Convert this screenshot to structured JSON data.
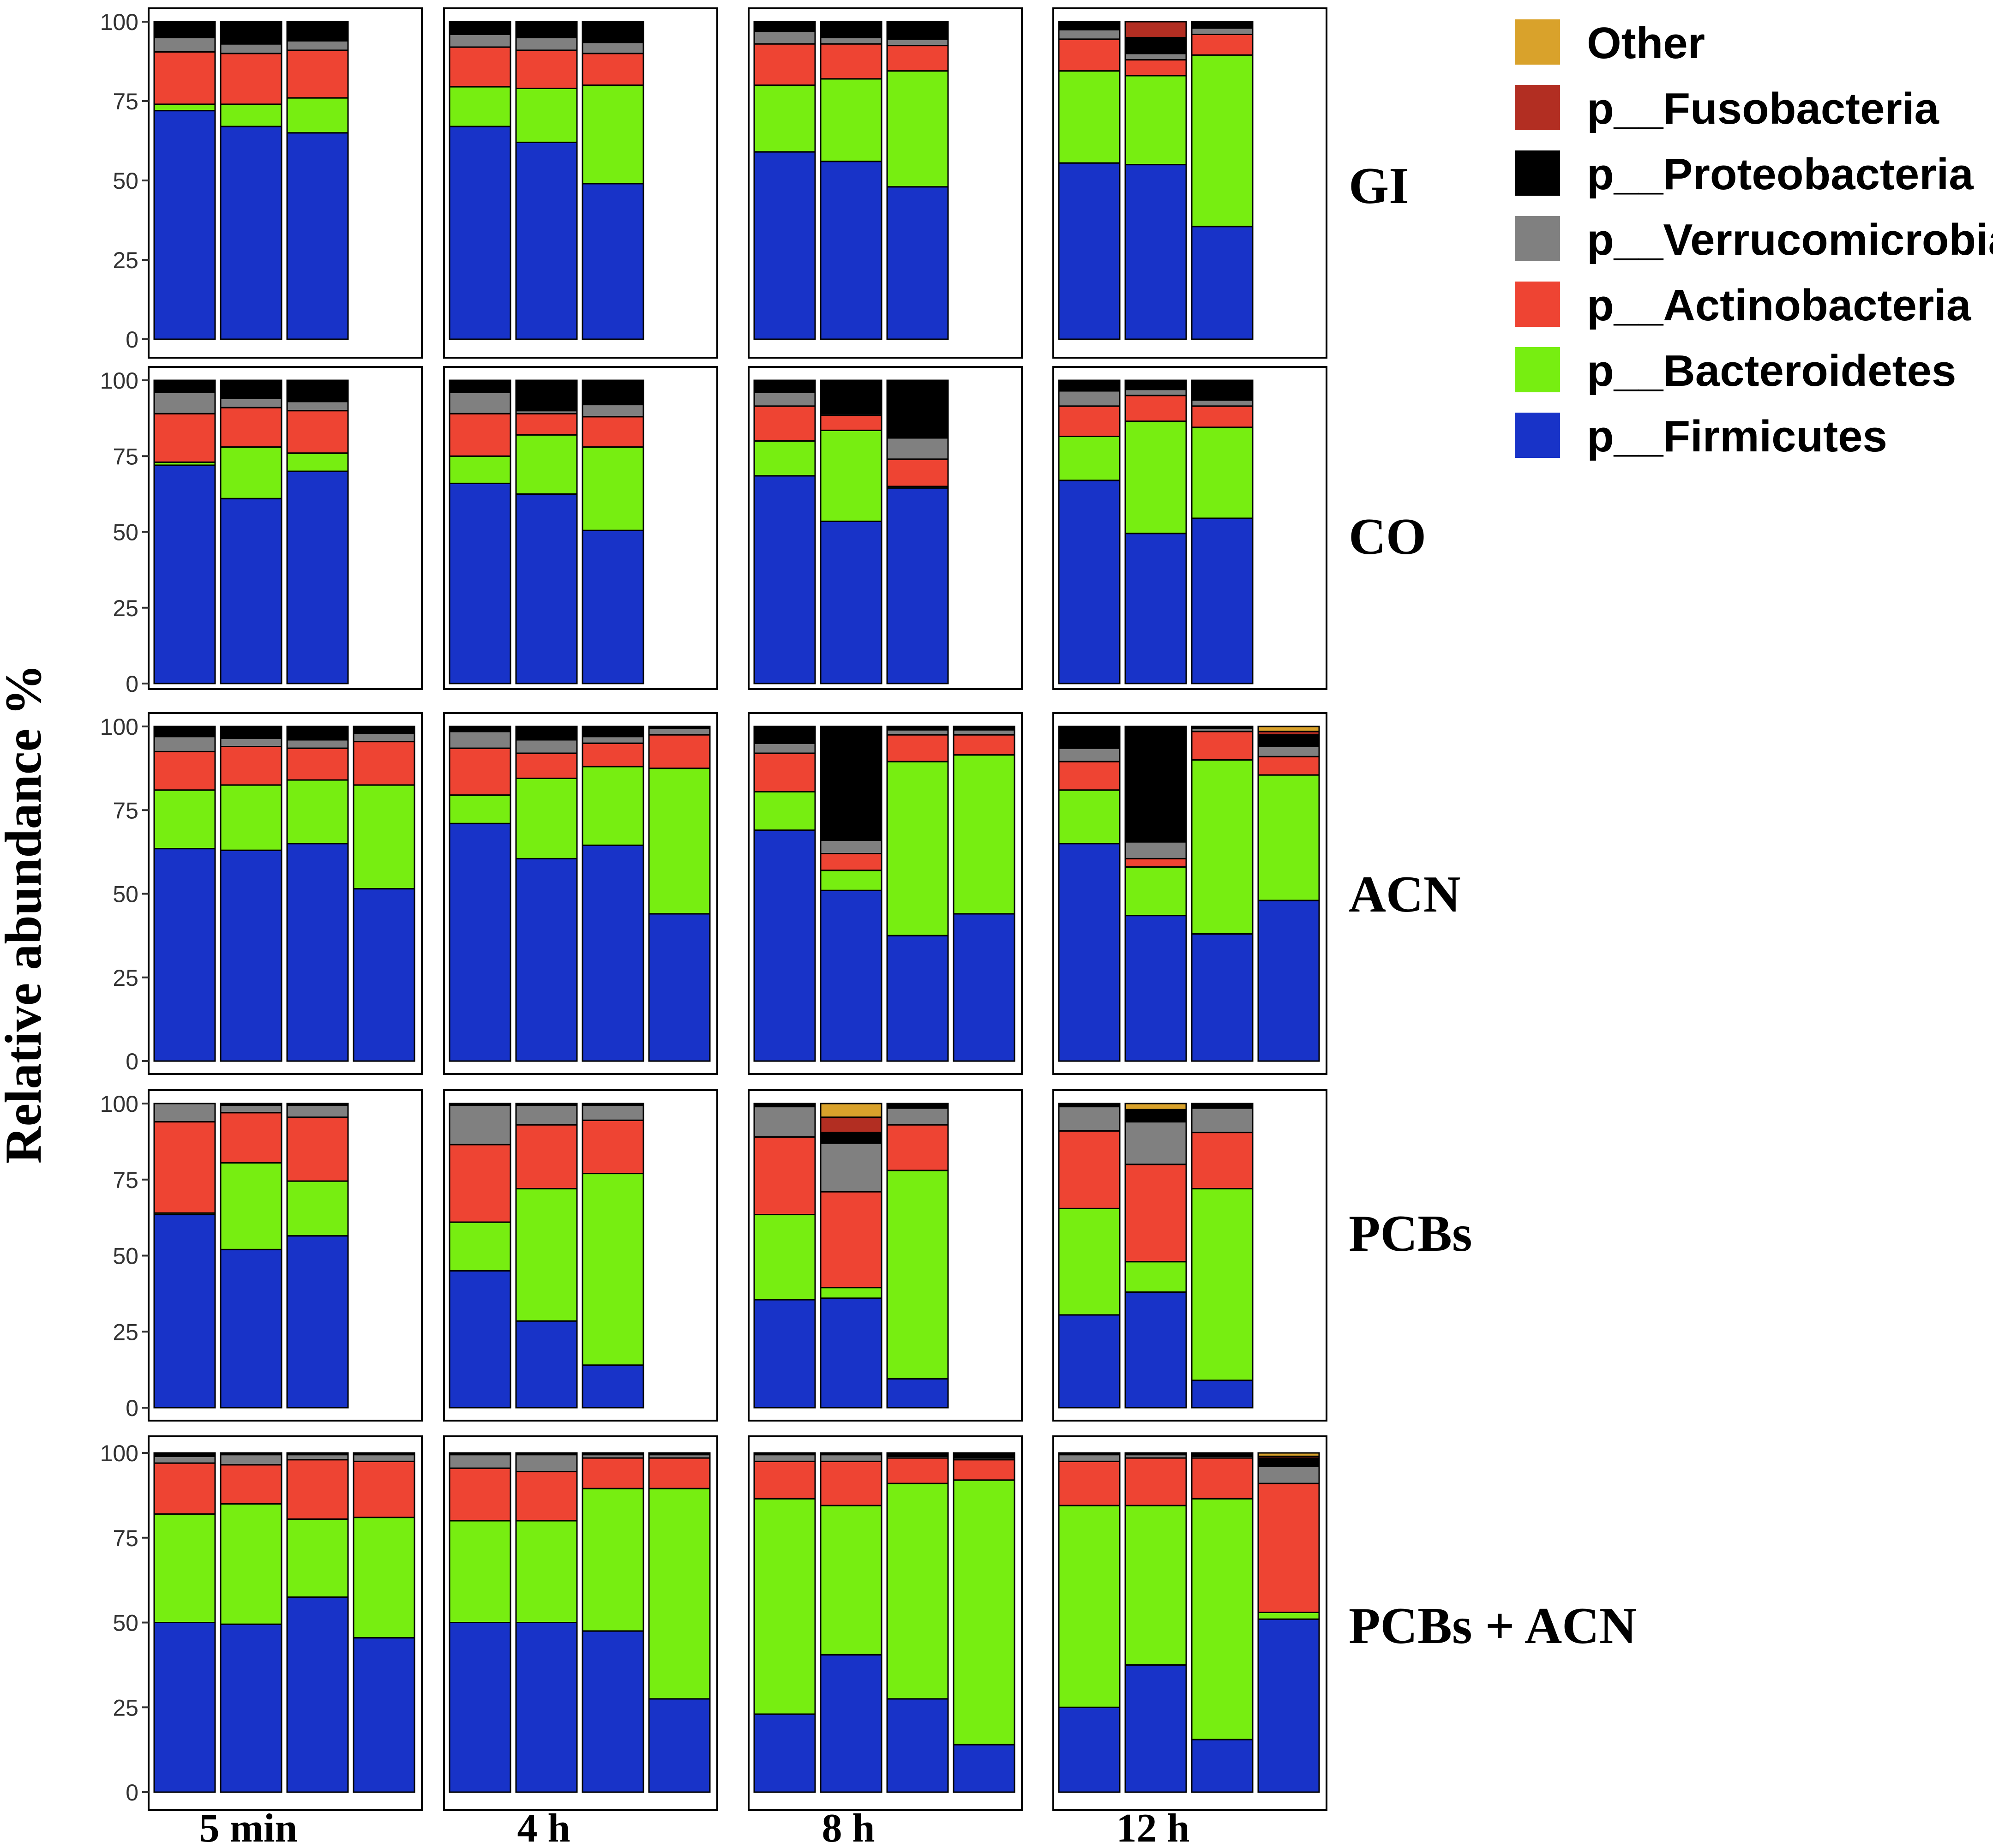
{
  "chart_data": {
    "type": "bar",
    "stacked": true,
    "ylabel": "Relative abundance %",
    "ylim": [
      0,
      100
    ],
    "yticks": [
      "0",
      "25",
      "50",
      "75",
      "100"
    ],
    "columns": [
      "5 min",
      "4 h",
      "8 h",
      "12 h"
    ],
    "rows": [
      "GI",
      "CO",
      "ACN",
      "PCBs",
      "PCBs + ACN"
    ],
    "legend": [
      {
        "name": "Other",
        "color": "#D9A22B"
      },
      {
        "name": "p__Fusobacteria",
        "color": "#B22E22"
      },
      {
        "name": "p__Proteobacteria",
        "color": "#000000"
      },
      {
        "name": "p__Verrucomicrobia",
        "color": "#808080"
      },
      {
        "name": "p__Actinobacteria",
        "color": "#EE4433"
      },
      {
        "name": "p__Bacteroidetes",
        "color": "#77EE11"
      },
      {
        "name": "p__Firmicutes",
        "color": "#1833C8"
      }
    ],
    "stack_order": [
      "p__Firmicutes",
      "p__Bacteroidetes",
      "p__Actinobacteria",
      "p__Verrucomicrobia",
      "p__Proteobacteria",
      "p__Fusobacteria",
      "p__Other"
    ],
    "panels": [
      [
        [
          [
            72,
            2,
            16.5,
            4.5,
            5,
            0,
            0
          ],
          [
            67,
            7,
            16,
            3,
            7,
            0,
            0
          ],
          [
            65,
            11,
            15,
            3,
            6,
            0,
            0
          ]
        ],
        [
          [
            67,
            12.5,
            12.5,
            4,
            4,
            0,
            0
          ],
          [
            62,
            17,
            12,
            4,
            5,
            0,
            0
          ],
          [
            49,
            31,
            10,
            3.5,
            6.5,
            0,
            0
          ]
        ],
        [
          [
            59,
            21,
            13,
            4,
            3,
            0,
            0
          ],
          [
            56,
            26,
            11,
            2,
            5,
            0,
            0
          ],
          [
            48,
            36.5,
            8,
            2,
            5.5,
            0,
            0
          ]
        ],
        [
          [
            55.5,
            29,
            10,
            3,
            2.5,
            0,
            0
          ],
          [
            55,
            28,
            5,
            2,
            5,
            5,
            0
          ],
          [
            35.5,
            54,
            6.5,
            2,
            2,
            0,
            0
          ]
        ]
      ],
      [
        [
          [
            72,
            1,
            16,
            7,
            4,
            0,
            0
          ],
          [
            61,
            17,
            13,
            3,
            6,
            0,
            0
          ],
          [
            70,
            6,
            14,
            3,
            7,
            0,
            0
          ]
        ],
        [
          [
            66,
            9,
            14,
            7,
            4,
            0,
            0
          ],
          [
            62.5,
            19.5,
            7,
            1,
            10,
            0,
            0
          ],
          [
            50.5,
            27.5,
            10,
            4,
            8,
            0,
            0
          ]
        ],
        [
          [
            68.5,
            11.5,
            11.5,
            4.5,
            4,
            0,
            0
          ],
          [
            53.5,
            30,
            5,
            0.5,
            11,
            0,
            0
          ],
          [
            64.5,
            0.5,
            9,
            7,
            19,
            0,
            0
          ]
        ],
        [
          [
            67,
            14.5,
            10,
            5,
            3.5,
            0,
            0
          ],
          [
            49.5,
            37,
            8.5,
            2,
            3,
            0,
            0
          ],
          [
            54.5,
            30,
            7,
            2,
            6.5,
            0,
            0
          ]
        ]
      ],
      [
        [
          [
            63.5,
            17.5,
            11.5,
            4.5,
            3,
            0,
            0
          ],
          [
            63,
            19.5,
            11.5,
            2.5,
            3.5,
            0,
            0
          ],
          [
            65,
            19,
            9.5,
            2.5,
            4,
            0,
            0
          ],
          [
            51.5,
            31,
            13,
            2.5,
            2,
            0,
            0
          ]
        ],
        [
          [
            71,
            8.5,
            14,
            5,
            1.5,
            0,
            0
          ],
          [
            60.5,
            24,
            7.5,
            4,
            4,
            0,
            0
          ],
          [
            64.5,
            23.5,
            7,
            2,
            3,
            0,
            0
          ],
          [
            44,
            43.5,
            10,
            2,
            0.5,
            0,
            0
          ]
        ],
        [
          [
            69,
            11.5,
            11.5,
            3,
            5,
            0,
            0
          ],
          [
            51,
            6,
            5,
            4,
            34,
            0,
            0
          ],
          [
            37.5,
            52,
            8,
            1.5,
            1,
            0,
            0
          ],
          [
            44,
            47.5,
            6,
            1.5,
            1,
            0,
            0
          ]
        ],
        [
          [
            65,
            16,
            8.5,
            4,
            6.5,
            0,
            0
          ],
          [
            43.5,
            14.5,
            2.5,
            5,
            34.5,
            0,
            0
          ],
          [
            38,
            52,
            8.5,
            1,
            0.5,
            0,
            0
          ],
          [
            48,
            37.5,
            5.5,
            3,
            3.5,
            1,
            1.5
          ]
        ]
      ],
      [
        [
          [
            63.5,
            0.5,
            30,
            6,
            0,
            0,
            0
          ],
          [
            52,
            28.5,
            16.5,
            2.5,
            0.5,
            0,
            0
          ],
          [
            56.5,
            18,
            21,
            4,
            0.5,
            0,
            0
          ]
        ],
        [
          [
            45,
            16,
            25.5,
            13,
            0.5,
            0,
            0
          ],
          [
            28.5,
            43.5,
            21,
            6.5,
            0.5,
            0,
            0
          ],
          [
            14,
            63,
            17.5,
            5,
            0.5,
            0,
            0
          ]
        ],
        [
          [
            35.5,
            28,
            25.5,
            10,
            1,
            0,
            0
          ],
          [
            36,
            3.5,
            31.5,
            16,
            3.5,
            5,
            4.5
          ],
          [
            9.5,
            68.5,
            15,
            5.5,
            1.5,
            0,
            0
          ]
        ],
        [
          [
            30.5,
            35,
            25.5,
            8,
            1,
            0,
            0
          ],
          [
            38,
            10,
            32,
            14,
            4,
            0,
            2
          ],
          [
            9,
            63,
            18.5,
            8,
            1.5,
            0,
            0
          ]
        ]
      ],
      [
        [
          [
            50,
            32,
            15,
            2,
            1,
            0,
            0
          ],
          [
            49.5,
            35.5,
            11.5,
            3,
            0.5,
            0,
            0
          ],
          [
            57.5,
            23,
            17.5,
            1.5,
            0.5,
            0,
            0
          ],
          [
            45.5,
            35.5,
            16.5,
            2,
            0.5,
            0,
            0
          ]
        ],
        [
          [
            50,
            30,
            15.5,
            4,
            0.5,
            0,
            0
          ],
          [
            50,
            30,
            14.5,
            5,
            0.5,
            0,
            0
          ],
          [
            47.5,
            42,
            9,
            1,
            0.5,
            0,
            0
          ],
          [
            27.5,
            62,
            9,
            1,
            0.5,
            0,
            0
          ]
        ],
        [
          [
            23,
            63.5,
            11,
            2,
            0.5,
            0,
            0
          ],
          [
            40.5,
            44,
            13,
            2,
            0.5,
            0,
            0
          ],
          [
            27.5,
            63.5,
            7.5,
            0.5,
            1,
            0,
            0
          ],
          [
            14,
            78,
            6,
            0.5,
            1.5,
            0,
            0
          ]
        ],
        [
          [
            25,
            59.5,
            13,
            2,
            0.5,
            0,
            0
          ],
          [
            37.5,
            47,
            14,
            1,
            0.5,
            0,
            0
          ],
          [
            15.5,
            71,
            12,
            0.5,
            1,
            0,
            0
          ],
          [
            51,
            2,
            38,
            5,
            2.5,
            0.5,
            1
          ]
        ]
      ]
    ]
  }
}
